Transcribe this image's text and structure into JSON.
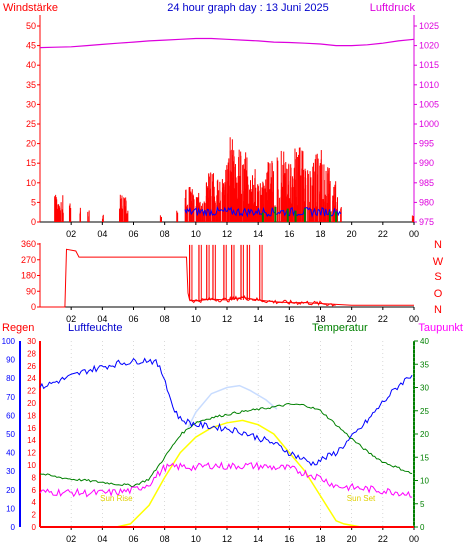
{
  "colors": {
    "wind_red": "#ff0000",
    "wind_blue": "#0000ff",
    "wind_green": "#008000",
    "pressure": "#dd00dd",
    "title": "#0000cc",
    "rain": "#ff0000",
    "humidity": "#0000ff",
    "temperature": "#008000",
    "dewpoint": "#ff00ff",
    "sun": "#ffff00",
    "solar": "#c8dcff",
    "grid": "#c0c0c0"
  },
  "header": {
    "title": "24 hour graph day : 13 Juni 2025",
    "left_label": "Windstärke",
    "right_label": "Luftdruck"
  },
  "direction_labels": [
    "N",
    "W",
    "S",
    "O",
    "N"
  ],
  "bottom_header": {
    "rain_label": "Regen",
    "humidity_label": "Luftfeuchte",
    "temperature_label": "Temperatur",
    "dewpoint_label": "Taupunkt"
  },
  "annotations": {
    "sunrise": "Sun Rise",
    "sunset": "Sun Set"
  },
  "chart_data": [
    {
      "type": "line",
      "panel": "wind-pressure",
      "x_ticks": [
        "02",
        "04",
        "06",
        "08",
        "10",
        "12",
        "14",
        "16",
        "18",
        "20",
        "22",
        "00"
      ],
      "xlim": [
        0,
        24
      ],
      "y_left": {
        "label": "Windstärke",
        "ylim": [
          0,
          50
        ],
        "ticks": [
          0,
          5,
          10,
          15,
          20,
          25,
          30,
          35,
          40,
          45,
          50
        ]
      },
      "y_right": {
        "label": "Luftdruck",
        "ylim": [
          975,
          1025
        ],
        "ticks": [
          975,
          980,
          985,
          990,
          995,
          1000,
          1005,
          1010,
          1015,
          1020,
          1025
        ]
      },
      "series": [
        {
          "axis": "right",
          "color": "#dd00dd",
          "x": [
            0,
            1,
            2,
            3,
            4,
            5,
            6,
            7,
            8,
            9,
            10,
            11,
            12,
            13,
            14,
            15,
            16,
            17,
            18,
            19,
            20,
            21,
            22,
            23,
            24
          ],
          "values": [
            1019.5,
            1019.6,
            1019.7,
            1020.0,
            1020.3,
            1020.6,
            1020.9,
            1021.2,
            1021.4,
            1021.6,
            1021.8,
            1021.8,
            1021.6,
            1021.4,
            1021.2,
            1020.9,
            1020.8,
            1020.6,
            1020.4,
            1020.0,
            1020.0,
            1020.2,
            1020.6,
            1021.2,
            1021.6
          ]
        }
      ],
      "wind_bursts": [
        {
          "x": 1.2,
          "gust": 7
        },
        {
          "x": 1.5,
          "gust": 5
        },
        {
          "x": 1.9,
          "gust": 6
        },
        {
          "x": 2.6,
          "gust": 4
        },
        {
          "x": 3.1,
          "gust": 3
        },
        {
          "x": 4.0,
          "gust": 2
        },
        {
          "x": 5.4,
          "gust": 7
        },
        {
          "x": 7.8,
          "gust": 2
        },
        {
          "x": 8.8,
          "gust": 3
        },
        {
          "x": 9.6,
          "gust": 9
        },
        {
          "x": 10.3,
          "gust": 8
        },
        {
          "x": 10.9,
          "gust": 13
        },
        {
          "x": 11.5,
          "gust": 11
        },
        {
          "x": 12.1,
          "gust": 17
        },
        {
          "x": 12.5,
          "gust": 22
        },
        {
          "x": 13.0,
          "gust": 18
        },
        {
          "x": 13.6,
          "gust": 14
        },
        {
          "x": 14.2,
          "gust": 11
        },
        {
          "x": 14.8,
          "gust": 16
        },
        {
          "x": 15.5,
          "gust": 19
        },
        {
          "x": 16.1,
          "gust": 15
        },
        {
          "x": 16.6,
          "gust": 20
        },
        {
          "x": 17.2,
          "gust": 14
        },
        {
          "x": 17.8,
          "gust": 19
        },
        {
          "x": 18.3,
          "gust": 17
        },
        {
          "x": 18.8,
          "gust": 11
        },
        {
          "x": 19.3,
          "gust": 4
        },
        {
          "x": 23.9,
          "gust": 2
        }
      ]
    },
    {
      "type": "line",
      "panel": "wind-direction",
      "x_ticks": [
        "02",
        "04",
        "06",
        "08",
        "10",
        "12",
        "14",
        "16",
        "18",
        "20",
        "22",
        "00"
      ],
      "xlim": [
        0,
        24
      ],
      "ylim": [
        0,
        360
      ],
      "y_ticks": [
        0,
        90,
        180,
        270,
        360
      ],
      "series": [
        {
          "color": "#ff0000",
          "x": [
            0,
            1.6,
            1.7,
            2.3,
            2.5,
            9.4,
            9.5,
            9.6,
            10,
            11,
            12,
            13,
            14,
            15,
            16,
            17,
            18,
            19,
            20,
            22,
            24
          ],
          "values": [
            0,
            0,
            330,
            320,
            285,
            285,
            80,
            40,
            35,
            45,
            40,
            55,
            40,
            30,
            25,
            25,
            20,
            15,
            10,
            10,
            10
          ]
        }
      ],
      "direction_spikes": [
        9.6,
        10.2,
        10.7,
        11.1,
        11.8,
        12.3,
        12.9,
        13.3,
        14.1
      ]
    },
    {
      "type": "line",
      "panel": "weather",
      "x_ticks": [
        "02",
        "04",
        "06",
        "08",
        "10",
        "12",
        "14",
        "16",
        "18",
        "20",
        "22",
        "00"
      ],
      "xlim": [
        0,
        24
      ],
      "y_humidity": {
        "ylim": [
          0,
          100
        ],
        "ticks": [
          0,
          10,
          20,
          30,
          40,
          50,
          60,
          70,
          80,
          90,
          100
        ]
      },
      "y_rain": {
        "ylim": [
          0,
          30
        ],
        "ticks": [
          0,
          2,
          4,
          6,
          8,
          10,
          12,
          14,
          16,
          18,
          20,
          22,
          24,
          26,
          28,
          30
        ]
      },
      "y_temperature": {
        "ylim": [
          0,
          40
        ],
        "ticks": [
          0,
          5,
          10,
          15,
          20,
          25,
          30,
          35,
          40
        ]
      },
      "series": [
        {
          "name": "Luftfeuchte",
          "axis": "humidity",
          "color": "#0000ff",
          "x": [
            0,
            1,
            2,
            3,
            4,
            5,
            6,
            7,
            7.5,
            8,
            8.5,
            9,
            10,
            11,
            12,
            13,
            14,
            15,
            16,
            17,
            17.5,
            18,
            19,
            20,
            21,
            22,
            23,
            24
          ],
          "values": [
            75,
            78,
            81,
            84,
            86,
            88,
            89,
            90,
            88,
            80,
            65,
            58,
            55,
            54,
            53,
            51,
            48,
            45,
            40,
            36,
            34,
            36,
            40,
            48,
            57,
            67,
            76,
            83
          ]
        },
        {
          "name": "Temperatur",
          "axis": "temperature",
          "color": "#008000",
          "x": [
            0,
            1,
            2,
            3,
            4,
            5,
            6,
            7,
            8,
            9,
            10,
            11,
            12,
            13,
            14,
            15,
            16,
            17,
            18,
            19,
            20,
            21,
            22,
            23,
            24
          ],
          "values": [
            11.5,
            10.8,
            10.3,
            10.0,
            9.6,
            9.2,
            8.9,
            10.3,
            15.0,
            19.8,
            22.5,
            23.5,
            24.2,
            24.8,
            25.3,
            25.8,
            26.4,
            26.2,
            25.0,
            22.0,
            19.0,
            16.2,
            14.0,
            12.7,
            11.3
          ]
        },
        {
          "name": "Taupunkt",
          "axis": "temperature",
          "color": "#ff00ff",
          "x": [
            0,
            1,
            2,
            3,
            4,
            5,
            6,
            7,
            8,
            9,
            10,
            11,
            12,
            13,
            14,
            15,
            16,
            17,
            18,
            19,
            20,
            21,
            22,
            23,
            24
          ],
          "values": [
            7.5,
            7.5,
            7.4,
            7.3,
            7.3,
            7.5,
            7.9,
            9.3,
            12.8,
            13.0,
            12.8,
            13.3,
            13.0,
            13.2,
            13.1,
            12.8,
            12.6,
            11.6,
            10.6,
            8.8,
            8.5,
            8.2,
            7.8,
            7.5,
            7.0
          ]
        },
        {
          "name": "Sun",
          "axis": "rain",
          "color": "#ffff00",
          "x": [
            0,
            4.9,
            5.8,
            7,
            8,
            9,
            10,
            11,
            12,
            13,
            14,
            15,
            16,
            17,
            18,
            19,
            19.5,
            20.6,
            24
          ],
          "values": [
            0,
            0,
            0.5,
            3.5,
            8.0,
            12.0,
            14.5,
            16.0,
            16.8,
            17.2,
            16.5,
            15.0,
            12.0,
            9.0,
            5.0,
            1.0,
            0.5,
            0,
            0
          ]
        },
        {
          "name": "Solar",
          "axis": "rain",
          "color": "#c8dcff",
          "x": [
            9.5,
            10,
            11,
            12,
            12.8,
            13.5,
            14.5,
            15.2
          ],
          "values": [
            16.0,
            18.5,
            21.5,
            22.5,
            22.8,
            22.0,
            20.5,
            19.0
          ]
        },
        {
          "name": "Regen",
          "axis": "rain",
          "color": "#ff0000",
          "x": [
            0,
            24
          ],
          "values": [
            0,
            0
          ]
        }
      ],
      "sunrise_x": 4.9,
      "sunset_x": 20.6
    }
  ]
}
